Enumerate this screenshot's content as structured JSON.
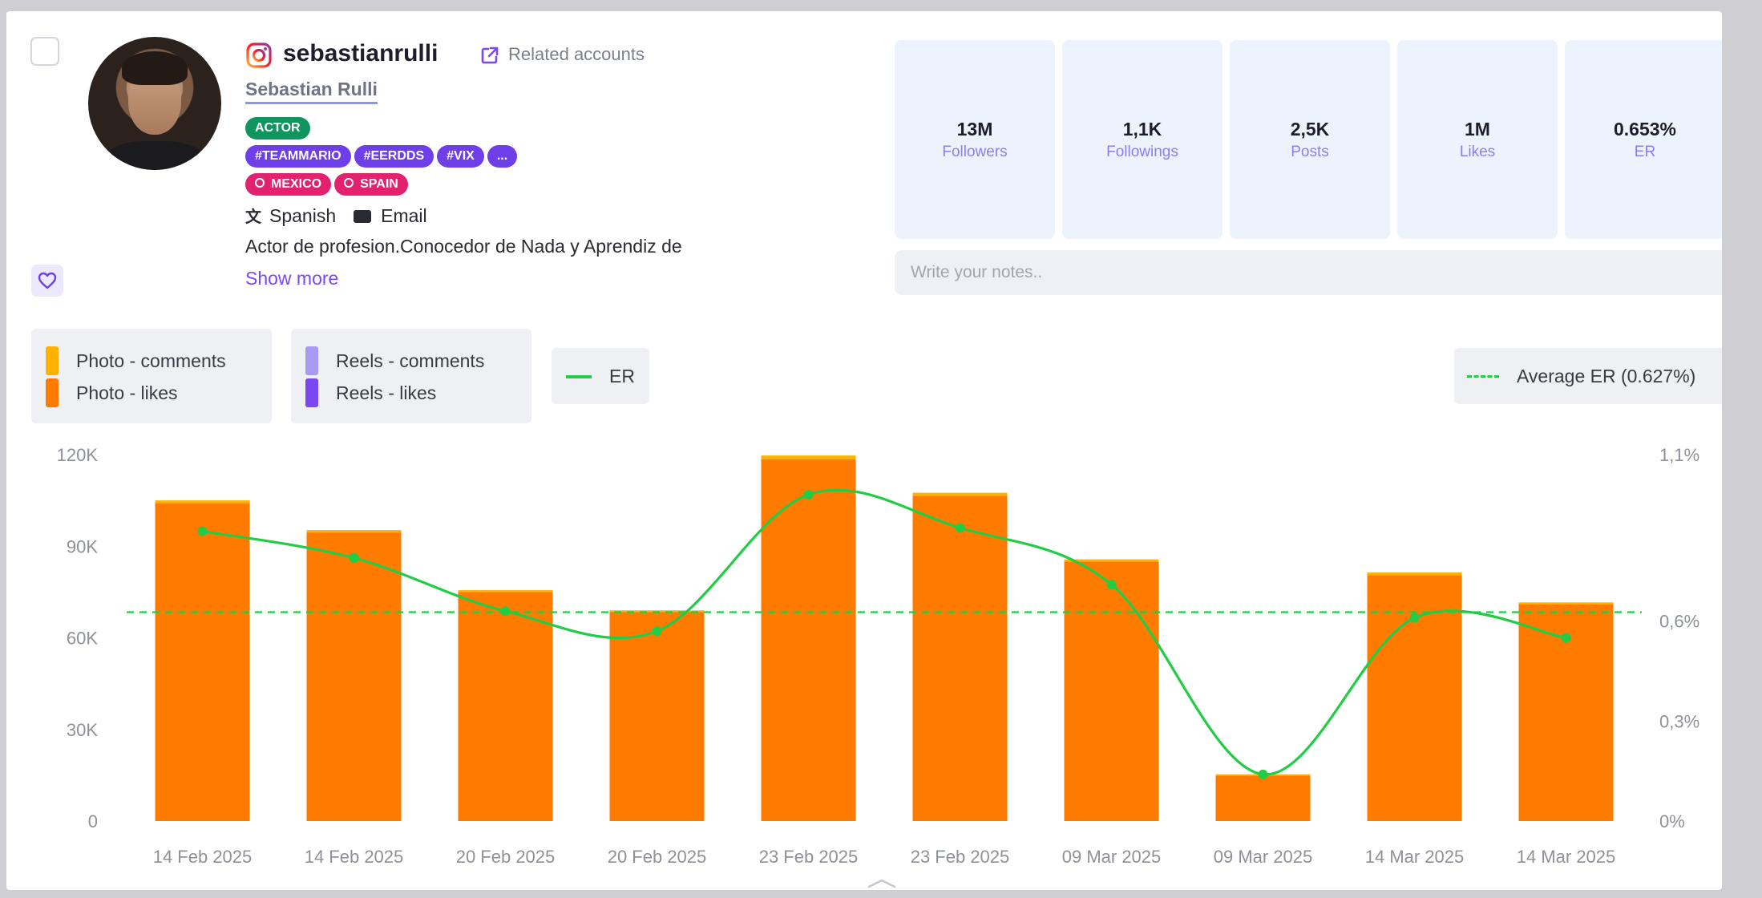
{
  "profile": {
    "platform_icon": "instagram-icon",
    "username": "sebastianrulli",
    "related_label": "Related accounts",
    "real_name": "Sebastian Rulli",
    "category": "ACTOR",
    "hashtags": [
      "#TEAMMARIO",
      "#EERDDS",
      "#VIX",
      "..."
    ],
    "locations": [
      "MEXICO",
      "SPAIN"
    ],
    "language": "Spanish",
    "email_label": "Email",
    "bio": "Actor de profesion.Conocedor de Nada y Aprendiz de",
    "show_more": "Show more"
  },
  "stats": [
    {
      "value": "13M",
      "label": "Followers"
    },
    {
      "value": "1,1K",
      "label": "Followings"
    },
    {
      "value": "2,5K",
      "label": "Posts"
    },
    {
      "value": "1M",
      "label": "Likes"
    },
    {
      "value": "0.653%",
      "label": "ER"
    }
  ],
  "notes": {
    "placeholder": "Write your notes..",
    "value": ""
  },
  "legend": {
    "photo_comments": "Photo - comments",
    "photo_likes": "Photo - likes",
    "reels_comments": "Reels - comments",
    "reels_likes": "Reels - likes",
    "er": "ER",
    "average_er": "Average ER (0.627%)"
  },
  "colors": {
    "photo_likes": "#ff7b00",
    "photo_comments": "#ffb000",
    "reels_likes": "#7b47f0",
    "reels_comments": "#a89af2",
    "er_line": "#22cc44",
    "accent": "#7b47f0"
  },
  "chart_data": {
    "type": "bar",
    "categories": [
      "14 Feb 2025",
      "14 Feb 2025",
      "20 Feb 2025",
      "20 Feb 2025",
      "23 Feb 2025",
      "23 Feb 2025",
      "09 Mar 2025",
      "09 Mar 2025",
      "14 Mar 2025",
      "14 Mar 2025"
    ],
    "series": [
      {
        "name": "Photo - likes",
        "values": [
          104000,
          94500,
          75000,
          68500,
          118500,
          106500,
          85000,
          15000,
          80500,
          71000
        ]
      },
      {
        "name": "Photo - comments",
        "values": [
          1000,
          800,
          600,
          500,
          1200,
          1000,
          700,
          300,
          900,
          600
        ]
      },
      {
        "name": "ER",
        "axis": "right",
        "type": "line",
        "values": [
          0.87,
          0.79,
          0.63,
          0.57,
          0.98,
          0.88,
          0.71,
          0.14,
          0.61,
          0.55
        ]
      }
    ],
    "average_er": 0.627,
    "ylim": [
      0,
      120000
    ],
    "y_ticks": [
      "0",
      "30K",
      "60K",
      "90K",
      "120K"
    ],
    "y2lim": [
      0,
      1.1
    ],
    "y2_ticks": [
      "0%",
      "0,3%",
      "0,6%",
      "1,1%"
    ],
    "y2_tick_values": [
      0,
      0.3,
      0.6,
      1.1
    ],
    "legend_position": "top",
    "grid": false
  }
}
